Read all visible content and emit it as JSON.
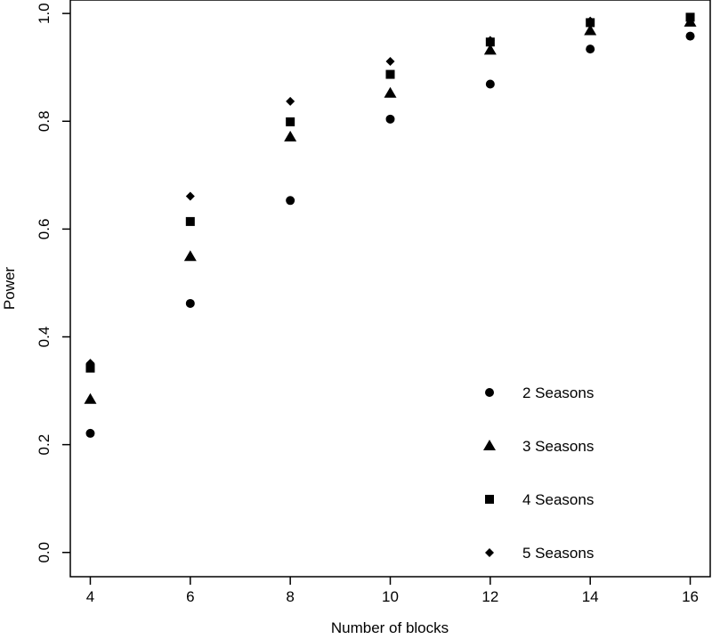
{
  "chart_data": {
    "type": "scatter",
    "title": "",
    "xlabel": "Number of blocks",
    "ylabel": "Power",
    "xlim": [
      3.6,
      16.4
    ],
    "ylim": [
      -0.045,
      1.025
    ],
    "x_ticks": [
      "4",
      "6",
      "8",
      "10",
      "12",
      "14",
      "16"
    ],
    "y_ticks": [
      "0.0",
      "0.2",
      "0.4",
      "0.6",
      "0.8",
      "1.0"
    ],
    "grid": false,
    "legend_position": "bottom-right",
    "x": [
      4,
      6,
      8,
      10,
      12,
      14,
      16
    ],
    "series": [
      {
        "name": "2 Seasons",
        "marker": "circle",
        "values": [
          0.221,
          0.462,
          0.653,
          0.804,
          0.869,
          0.934,
          0.958
        ]
      },
      {
        "name": "3 Seasons",
        "marker": "triangle",
        "values": [
          0.284,
          0.549,
          0.771,
          0.852,
          0.932,
          0.968,
          0.984
        ]
      },
      {
        "name": "4 Seasons",
        "marker": "square",
        "values": [
          0.342,
          0.614,
          0.799,
          0.887,
          0.947,
          0.983,
          0.993
        ]
      },
      {
        "name": "5 Seasons",
        "marker": "diamond",
        "values": [
          0.351,
          0.661,
          0.837,
          0.911,
          0.95,
          0.986,
          0.992
        ]
      }
    ],
    "colors": {
      "marker": "#000000",
      "axis": "#000000",
      "background": "#ffffff"
    }
  }
}
